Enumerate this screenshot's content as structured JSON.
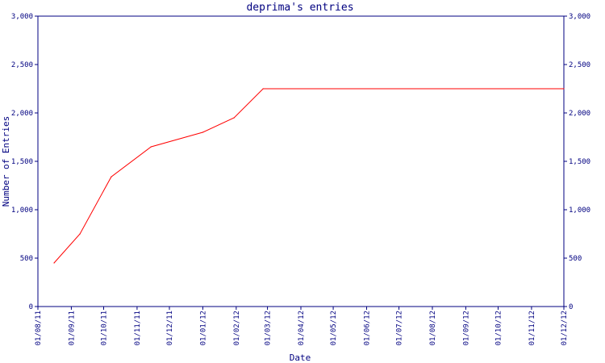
{
  "chart_data": {
    "type": "line",
    "title": "deprima's entries",
    "xlabel": "Date",
    "ylabel": "Number of Entries",
    "ylim": [
      0,
      3000
    ],
    "yticks": [
      {
        "value": 0,
        "label": "0"
      },
      {
        "value": 500,
        "label": "500"
      },
      {
        "value": 1000,
        "label": "1,000"
      },
      {
        "value": 1500,
        "label": "1,500"
      },
      {
        "value": 2000,
        "label": "2,000"
      },
      {
        "value": 2500,
        "label": "2,500"
      },
      {
        "value": 3000,
        "label": "3,000"
      }
    ],
    "xticks": [
      "01/08/11",
      "01/09/11",
      "01/10/11",
      "01/11/11",
      "01/12/11",
      "01/01/12",
      "01/02/12",
      "01/03/12",
      "01/04/12",
      "01/05/12",
      "01/06/12",
      "01/07/12",
      "01/08/12",
      "01/09/12",
      "01/10/12",
      "01/11/12",
      "01/12/12"
    ],
    "series": [
      {
        "color": "#ff0000",
        "points": [
          {
            "x": "2011-08-16",
            "y": 450
          },
          {
            "x": "2011-09-09",
            "y": 750
          },
          {
            "x": "2011-10-08",
            "y": 1340
          },
          {
            "x": "2011-11-14",
            "y": 1650
          },
          {
            "x": "2012-01-01",
            "y": 1800
          },
          {
            "x": "2012-01-30",
            "y": 1950
          },
          {
            "x": "2012-02-26",
            "y": 2250
          },
          {
            "x": "2012-12-01",
            "y": 2250
          }
        ]
      }
    ],
    "grid": false,
    "colors": {
      "axis": "#000080",
      "text": "#000080",
      "line": "#ff0000"
    }
  }
}
